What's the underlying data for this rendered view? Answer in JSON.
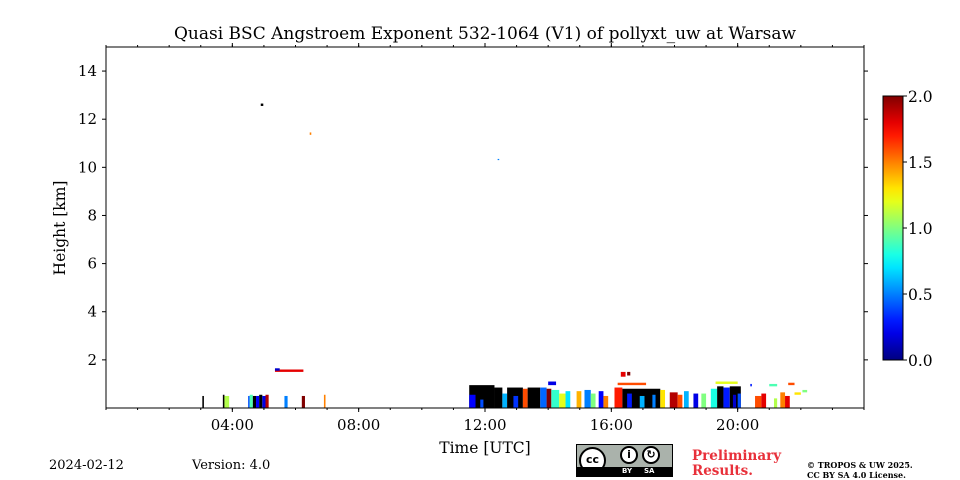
{
  "chart_data": {
    "type": "heatmap",
    "title": "Quasi BSC Angstroem Exponent 532-1064 (V1) of pollyxt_uw at Warsaw",
    "xlabel": "Time [UTC]",
    "ylabel": "Height [km]",
    "xlim_hours": [
      0,
      24
    ],
    "ylim_km": [
      0,
      15
    ],
    "x_ticks": [
      {
        "value": 4,
        "label": "04:00"
      },
      {
        "value": 8,
        "label": "08:00"
      },
      {
        "value": 12,
        "label": "12:00"
      },
      {
        "value": 16,
        "label": "16:00"
      },
      {
        "value": 20,
        "label": "20:00"
      }
    ],
    "y_ticks": [
      {
        "value": 2,
        "label": "2"
      },
      {
        "value": 4,
        "label": "4"
      },
      {
        "value": 6,
        "label": "6"
      },
      {
        "value": 8,
        "label": "8"
      },
      {
        "value": 10,
        "label": "10"
      },
      {
        "value": 12,
        "label": "12"
      },
      {
        "value": 14,
        "label": "14"
      }
    ],
    "colorbar": {
      "min": 0.0,
      "max": 2.0,
      "colormap": "jet",
      "ticks": [
        {
          "value": 0.0,
          "label": "0.0"
        },
        {
          "value": 0.5,
          "label": "0.5"
        },
        {
          "value": 1.0,
          "label": "1.0"
        },
        {
          "value": 1.5,
          "label": "1.5"
        },
        {
          "value": 2.0,
          "label": "2.0"
        }
      ]
    },
    "cells": [
      {
        "t0": 3.05,
        "t1": 3.1,
        "h0": 0.0,
        "h1": 0.5,
        "v": null
      },
      {
        "t0": 3.7,
        "t1": 3.75,
        "h0": 0.0,
        "h1": 0.55,
        "v": null
      },
      {
        "t0": 3.75,
        "t1": 3.9,
        "h0": 0.0,
        "h1": 0.5,
        "v": 1.1
      },
      {
        "t0": 4.5,
        "t1": 4.55,
        "h0": 0.0,
        "h1": 0.5,
        "v": 0.4
      },
      {
        "t0": 4.55,
        "t1": 4.65,
        "h0": 0.0,
        "h1": 0.55,
        "v": 0.9
      },
      {
        "t0": 4.65,
        "t1": 4.75,
        "h0": 0.0,
        "h1": 0.5,
        "v": null
      },
      {
        "t0": 4.75,
        "t1": 4.85,
        "h0": 0.0,
        "h1": 0.5,
        "v": 0.25
      },
      {
        "t0": 4.85,
        "t1": 4.95,
        "h0": 0.0,
        "h1": 0.55,
        "v": null
      },
      {
        "t0": 4.95,
        "t1": 5.05,
        "h0": 0.0,
        "h1": 0.5,
        "v": 0.2
      },
      {
        "t0": 5.05,
        "t1": 5.15,
        "h0": 0.0,
        "h1": 0.55,
        "v": 1.9
      },
      {
        "t0": 5.65,
        "t1": 5.75,
        "h0": 0.0,
        "h1": 0.5,
        "v": 0.5
      },
      {
        "t0": 6.2,
        "t1": 6.3,
        "h0": 0.0,
        "h1": 0.5,
        "v": 2.0
      },
      {
        "t0": 6.9,
        "t1": 6.95,
        "h0": 0.0,
        "h1": 0.55,
        "v": 1.5
      },
      {
        "t0": 5.35,
        "t1": 6.25,
        "h0": 1.5,
        "h1": 1.6,
        "v": 1.8
      },
      {
        "t0": 5.35,
        "t1": 5.5,
        "h0": 1.55,
        "h1": 1.65,
        "v": 0.15
      },
      {
        "t0": 4.9,
        "t1": 4.98,
        "h0": 12.55,
        "h1": 12.65,
        "v": null
      },
      {
        "t0": 6.45,
        "t1": 6.5,
        "h0": 11.35,
        "h1": 11.45,
        "v": 1.5
      },
      {
        "t0": 11.5,
        "t1": 12.3,
        "h0": 0.0,
        "h1": 0.95,
        "v": null
      },
      {
        "t0": 11.5,
        "t1": 11.7,
        "h0": 0.0,
        "h1": 0.55,
        "v": 0.25
      },
      {
        "t0": 11.85,
        "t1": 11.95,
        "h0": 0.0,
        "h1": 0.35,
        "v": 0.4
      },
      {
        "t0": 12.3,
        "t1": 12.55,
        "h0": 0.0,
        "h1": 0.85,
        "v": null
      },
      {
        "t0": 12.55,
        "t1": 12.7,
        "h0": 0.0,
        "h1": 0.6,
        "v": 0.6
      },
      {
        "t0": 12.7,
        "t1": 13.2,
        "h0": 0.0,
        "h1": 0.85,
        "v": null
      },
      {
        "t0": 12.9,
        "t1": 13.05,
        "h0": 0.0,
        "h1": 0.5,
        "v": 0.35
      },
      {
        "t0": 13.2,
        "t1": 13.35,
        "h0": 0.0,
        "h1": 0.8,
        "v": 1.6
      },
      {
        "t0": 13.35,
        "t1": 13.75,
        "h0": 0.0,
        "h1": 0.85,
        "v": null
      },
      {
        "t0": 13.75,
        "t1": 13.95,
        "h0": 0.0,
        "h1": 0.85,
        "v": 0.45
      },
      {
        "t0": 13.95,
        "t1": 14.1,
        "h0": 0.0,
        "h1": 0.8,
        "v": 2.0
      },
      {
        "t0": 14.1,
        "t1": 14.35,
        "h0": 0.0,
        "h1": 0.75,
        "v": 0.85
      },
      {
        "t0": 14.35,
        "t1": 14.55,
        "h0": 0.0,
        "h1": 0.6,
        "v": 1.2
      },
      {
        "t0": 14.55,
        "t1": 14.7,
        "h0": 0.0,
        "h1": 0.7,
        "v": 0.7
      },
      {
        "t0": 14.0,
        "t1": 14.25,
        "h0": 0.95,
        "h1": 1.1,
        "v": 0.2
      },
      {
        "t0": 14.9,
        "t1": 15.05,
        "h0": 0.0,
        "h1": 0.7,
        "v": 1.4
      },
      {
        "t0": 15.15,
        "t1": 15.35,
        "h0": 0.0,
        "h1": 0.75,
        "v": 0.5
      },
      {
        "t0": 15.35,
        "t1": 15.5,
        "h0": 0.0,
        "h1": 0.6,
        "v": 1.0
      },
      {
        "t0": 15.6,
        "t1": 15.75,
        "h0": 0.0,
        "h1": 0.7,
        "v": 0.25
      },
      {
        "t0": 15.75,
        "t1": 15.9,
        "h0": 0.0,
        "h1": 0.5,
        "v": 1.5
      },
      {
        "t0": 16.1,
        "t1": 16.35,
        "h0": 0.0,
        "h1": 0.85,
        "v": 1.7
      },
      {
        "t0": 16.35,
        "t1": 17.55,
        "h0": 0.0,
        "h1": 0.8,
        "v": null
      },
      {
        "t0": 16.5,
        "t1": 16.65,
        "h0": 0.0,
        "h1": 0.6,
        "v": 0.3
      },
      {
        "t0": 16.9,
        "t1": 17.05,
        "h0": 0.0,
        "h1": 0.5,
        "v": 0.6
      },
      {
        "t0": 17.3,
        "t1": 17.4,
        "h0": 0.0,
        "h1": 0.55,
        "v": 0.5
      },
      {
        "t0": 17.55,
        "t1": 17.7,
        "h0": 0.0,
        "h1": 0.75,
        "v": 1.3
      },
      {
        "t0": 16.3,
        "t1": 16.45,
        "h0": 1.3,
        "h1": 1.5,
        "v": 1.8
      },
      {
        "t0": 16.5,
        "t1": 16.6,
        "h0": 1.35,
        "h1": 1.5,
        "v": 2.0
      },
      {
        "t0": 16.2,
        "t1": 17.1,
        "h0": 0.95,
        "h1": 1.05,
        "v": 1.6
      },
      {
        "t0": 17.85,
        "t1": 18.1,
        "h0": 0.0,
        "h1": 0.65,
        "v": 1.9
      },
      {
        "t0": 18.1,
        "t1": 18.25,
        "h0": 0.0,
        "h1": 0.55,
        "v": 1.6
      },
      {
        "t0": 18.3,
        "t1": 18.45,
        "h0": 0.0,
        "h1": 0.7,
        "v": 0.6
      },
      {
        "t0": 18.6,
        "t1": 18.75,
        "h0": 0.0,
        "h1": 0.6,
        "v": 0.2
      },
      {
        "t0": 18.85,
        "t1": 19.0,
        "h0": 0.0,
        "h1": 0.6,
        "v": 1.0
      },
      {
        "t0": 19.15,
        "t1": 19.35,
        "h0": 0.0,
        "h1": 0.8,
        "v": 0.8
      },
      {
        "t0": 19.35,
        "t1": 19.55,
        "h0": 0.0,
        "h1": 0.9,
        "v": null
      },
      {
        "t0": 19.55,
        "t1": 19.75,
        "h0": 0.0,
        "h1": 0.85,
        "v": 0.3
      },
      {
        "t0": 19.75,
        "t1": 20.1,
        "h0": 0.0,
        "h1": 0.9,
        "v": null
      },
      {
        "t0": 19.85,
        "t1": 19.95,
        "h0": 0.0,
        "h1": 0.55,
        "v": 0.15
      },
      {
        "t0": 20.0,
        "t1": 20.1,
        "h0": 0.0,
        "h1": 0.6,
        "v": 0.4
      },
      {
        "t0": 19.3,
        "t1": 20.0,
        "h0": 1.0,
        "h1": 1.1,
        "v": 1.2
      },
      {
        "t0": 20.4,
        "t1": 20.45,
        "h0": 0.9,
        "h1": 1.0,
        "v": 0.3
      },
      {
        "t0": 20.55,
        "t1": 20.75,
        "h0": 0.0,
        "h1": 0.5,
        "v": 1.6
      },
      {
        "t0": 20.75,
        "t1": 20.9,
        "h0": 0.0,
        "h1": 0.6,
        "v": 1.8
      },
      {
        "t0": 21.35,
        "t1": 21.5,
        "h0": 0.0,
        "h1": 0.65,
        "v": 1.5
      },
      {
        "t0": 21.5,
        "t1": 21.65,
        "h0": 0.0,
        "h1": 0.5,
        "v": 1.8
      },
      {
        "t0": 21.15,
        "t1": 21.25,
        "h0": 0.0,
        "h1": 0.4,
        "v": 1.1
      },
      {
        "t0": 21.0,
        "t1": 21.25,
        "h0": 0.9,
        "h1": 1.0,
        "v": 0.9
      },
      {
        "t0": 21.6,
        "t1": 21.8,
        "h0": 0.95,
        "h1": 1.05,
        "v": 1.6
      },
      {
        "t0": 21.8,
        "t1": 22.0,
        "h0": 0.55,
        "h1": 0.65,
        "v": 1.3
      },
      {
        "t0": 22.05,
        "t1": 22.2,
        "h0": 0.65,
        "h1": 0.75,
        "v": 1.0
      },
      {
        "t0": 12.4,
        "t1": 12.45,
        "h0": 10.3,
        "h1": 10.35,
        "v": 0.5
      }
    ]
  },
  "footer": {
    "date": "2024-02-12",
    "version": "Version: 4.0",
    "preliminary_line1": "Preliminary",
    "preliminary_line2": "Results.",
    "credit_line1": "© TROPOS & UW 2025.",
    "credit_line2": "CC BY SA 4.0 License.",
    "license_by": "BY",
    "license_sa": "SA",
    "license_cc": "cc"
  }
}
